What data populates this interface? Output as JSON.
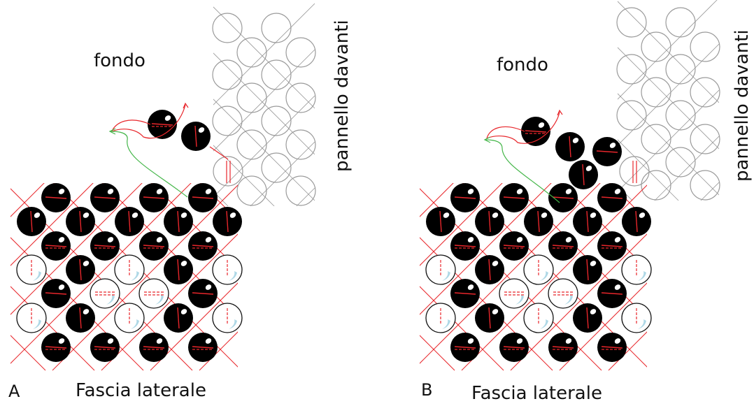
{
  "panels": [
    {
      "letter": "A",
      "top_label": "fondo",
      "side_label": "pannello  davanti",
      "bottom_label": "Fascia laterale"
    },
    {
      "letter": "B",
      "top_label": "fondo",
      "side_label": "pannello  davanti",
      "bottom_label": "Fascia laterale"
    }
  ],
  "colors": {
    "bead_fill": "#000000",
    "thread_red": "#e8262b",
    "thread_green": "#44b649",
    "outline_grey": "#9a9a9a",
    "bead_highlight": "#aed8e6"
  }
}
